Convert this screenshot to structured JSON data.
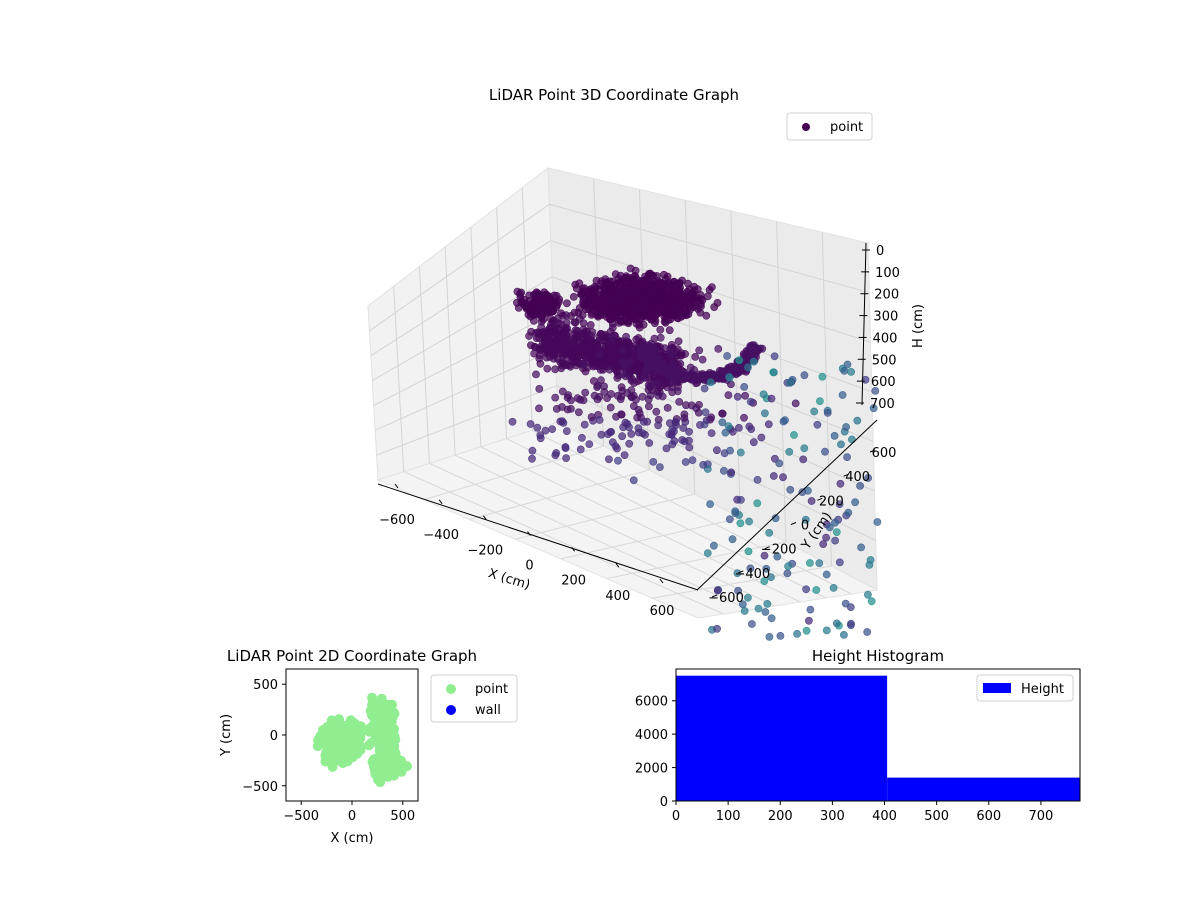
{
  "chart_data": [
    {
      "type": "scatter",
      "title": "LiDAR Point 3D Coordinate Graph",
      "xlabel": "X (cm)",
      "ylabel": "Y (cm)",
      "zlabel": "H (cm)",
      "xticks": [
        "−600",
        "−400",
        "−200",
        "0",
        "200",
        "400",
        "600"
      ],
      "yticks": [
        "−600",
        "−400",
        "−200",
        "0",
        "200",
        "400",
        "600"
      ],
      "zticks": [
        "0",
        "100",
        "200",
        "300",
        "400",
        "500",
        "600",
        "700"
      ],
      "xlim": [
        -700,
        700
      ],
      "ylim": [
        -700,
        700
      ],
      "zlim": [
        0,
        750
      ],
      "z_inverted": true,
      "colormap": "viridis",
      "legend": {
        "placement": "upper-right",
        "entries": [
          {
            "label": "point",
            "color": "#440154"
          }
        ]
      }
    },
    {
      "type": "scatter",
      "title": "LiDAR Point 2D Coordinate Graph",
      "xlabel": "X (cm)",
      "ylabel": "Y (cm)",
      "xticks": [
        "−500",
        "0",
        "500"
      ],
      "yticks": [
        "500",
        "0",
        "−500"
      ],
      "xlim": [
        -650,
        650
      ],
      "ylim": [
        -650,
        650
      ],
      "series": [
        {
          "name": "point",
          "color": "#90ee90"
        },
        {
          "name": "wall",
          "color": "#0000ff",
          "values": []
        }
      ],
      "legend": {
        "placement": "outside-right",
        "entries": [
          {
            "label": "point",
            "color": "#90ee90"
          },
          {
            "label": "wall",
            "color": "#0000ff"
          }
        ]
      }
    },
    {
      "type": "bar",
      "title": "Height Histogram",
      "xticks": [
        "0",
        "100",
        "200",
        "300",
        "400",
        "500",
        "600",
        "700"
      ],
      "yticks": [
        "0",
        "2000",
        "4000",
        "6000"
      ],
      "bins": [
        {
          "from": 0,
          "to": 405,
          "count": 7500
        },
        {
          "from": 405,
          "to": 775,
          "count": 1400
        }
      ],
      "xlim": [
        0,
        775
      ],
      "ylim": [
        0,
        7900
      ],
      "color": "#0000ff",
      "legend": {
        "placement": "upper-right",
        "entries": [
          {
            "label": "Height",
            "color": "#0000ff"
          }
        ]
      }
    }
  ]
}
